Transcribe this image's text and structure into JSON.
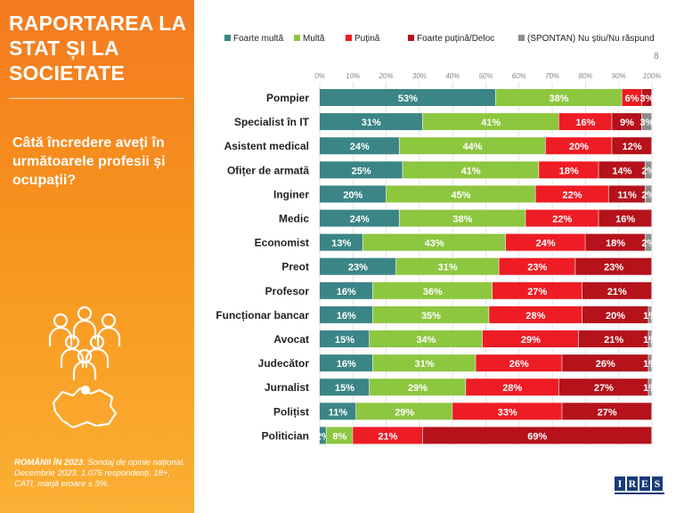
{
  "panel": {
    "title": "RAPORTAREA LA STAT ȘI LA SOCIETATE",
    "question": "Câtă încredere aveți în următoarele profesii și ocupații?",
    "footer_bold": "ROMÂNII ÎN 2023",
    "footer_text": ". Sondaj de opinie național. Decembrie 2023. 1.075 respondenți, 18+, CATI, marjă eroare ± 3%."
  },
  "page_number": "8",
  "logo": {
    "letters": [
      "I",
      "R",
      "E",
      "S"
    ]
  },
  "chart_data": {
    "type": "bar",
    "orientation": "horizontal",
    "stacked": true,
    "xlim": [
      0,
      100
    ],
    "x_ticks": [
      "0%",
      "10%",
      "20%",
      "30%",
      "40%",
      "50%",
      "60%",
      "70%",
      "80%",
      "90%",
      "100%"
    ],
    "legend_position": "top",
    "categories": [
      "Pompier",
      "Specialist în IT",
      "Asistent medical",
      "Ofițer de armată",
      "Inginer",
      "Medic",
      "Economist",
      "Preot",
      "Profesor",
      "Funcționar bancar",
      "Avocat",
      "Judecător",
      "Jurnalist",
      "Polițist",
      "Politician"
    ],
    "series": [
      {
        "name": "Foarte multă",
        "color": "#3b8586",
        "values": [
          53,
          31,
          24,
          25,
          20,
          24,
          13,
          23,
          16,
          16,
          15,
          16,
          15,
          11,
          2
        ]
      },
      {
        "name": "Multă",
        "color": "#8dc63f",
        "values": [
          38,
          41,
          44,
          41,
          45,
          38,
          43,
          31,
          36,
          35,
          34,
          31,
          29,
          29,
          8
        ]
      },
      {
        "name": "Puțină",
        "color": "#ee1c24",
        "values": [
          6,
          16,
          20,
          18,
          22,
          22,
          24,
          23,
          27,
          28,
          29,
          26,
          28,
          33,
          21
        ]
      },
      {
        "name": "Foarte puțină/Deloc",
        "color": "#b5121b",
        "values": [
          3,
          9,
          12,
          14,
          11,
          16,
          18,
          23,
          21,
          20,
          21,
          26,
          27,
          27,
          69
        ]
      },
      {
        "name": "(SPONTAN) Nu știu/Nu răspund",
        "color": "#8c8c8c",
        "values": [
          0,
          3,
          0,
          2,
          2,
          0,
          2,
          0,
          0,
          1,
          1,
          1,
          1,
          0,
          0
        ]
      }
    ],
    "labels": [
      [
        "53%",
        "38%",
        "6%",
        "3%",
        null
      ],
      [
        "31%",
        "41%",
        "16%",
        "9%",
        "3%"
      ],
      [
        "24%",
        "44%",
        "20%",
        "12%",
        null
      ],
      [
        "25%",
        "41%",
        "18%",
        "14%",
        "2%"
      ],
      [
        "20%",
        "45%",
        "22%",
        "11%",
        "2%"
      ],
      [
        "24%",
        "38%",
        "22%",
        "16%",
        null
      ],
      [
        "13%",
        "43%",
        "24%",
        "18%",
        "2%"
      ],
      [
        "23%",
        "31%",
        "23%",
        "23%",
        null
      ],
      [
        "16%",
        "36%",
        "27%",
        "21%",
        null
      ],
      [
        "16%",
        "35%",
        "28%",
        "20%",
        "1%"
      ],
      [
        "15%",
        "34%",
        "29%",
        "21%",
        "1%"
      ],
      [
        "16%",
        "31%",
        "26%",
        "26%",
        "1%"
      ],
      [
        "15%",
        "29%",
        "28%",
        "27%",
        "1%"
      ],
      [
        "11%",
        "29%",
        "33%",
        "27%",
        null
      ],
      [
        "2%",
        "8%",
        "21%",
        "69%",
        null
      ]
    ]
  }
}
